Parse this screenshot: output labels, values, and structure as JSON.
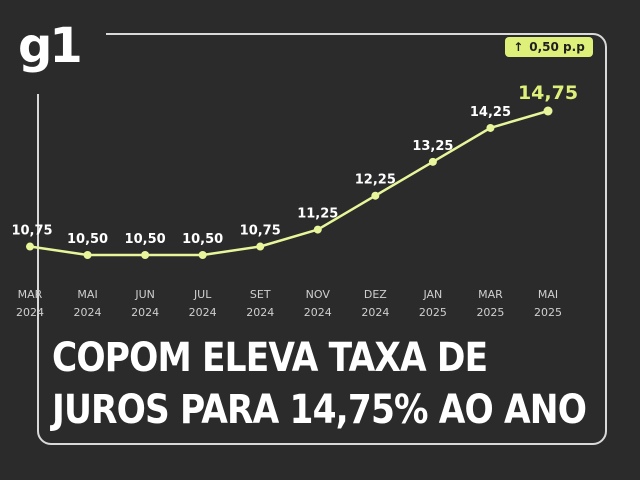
{
  "brand": {
    "logo": "g1"
  },
  "badge": {
    "arrow": "↑",
    "text": "0,50 p.p"
  },
  "headline": {
    "line1": "COPOM ELEVA TAXA DE",
    "line2": "JUROS PARA 14,75% AO ANO"
  },
  "colors": {
    "background": "#2b2b2b",
    "line": "#e8f59a",
    "highlight": "#dff07a",
    "text": "#ffffff"
  },
  "chart_data": {
    "type": "line",
    "title": "",
    "xlabel": "",
    "ylabel": "",
    "categories": [
      [
        "MAR",
        "2024"
      ],
      [
        "MAI",
        "2024"
      ],
      [
        "JUN",
        "2024"
      ],
      [
        "JUL",
        "2024"
      ],
      [
        "SET",
        "2024"
      ],
      [
        "NOV",
        "2024"
      ],
      [
        "DEZ",
        "2024"
      ],
      [
        "JAN",
        "2025"
      ],
      [
        "MAR",
        "2025"
      ],
      [
        "MAI",
        "2025"
      ]
    ],
    "values": [
      10.75,
      10.5,
      10.5,
      10.5,
      10.75,
      11.25,
      12.25,
      13.25,
      14.25,
      14.75
    ],
    "value_labels": [
      "10,75",
      "10,50",
      "10,50",
      "10,50",
      "10,75",
      "11,25",
      "12,25",
      "13,25",
      "14,25",
      "14,75"
    ],
    "grid": false,
    "legend": "none"
  }
}
